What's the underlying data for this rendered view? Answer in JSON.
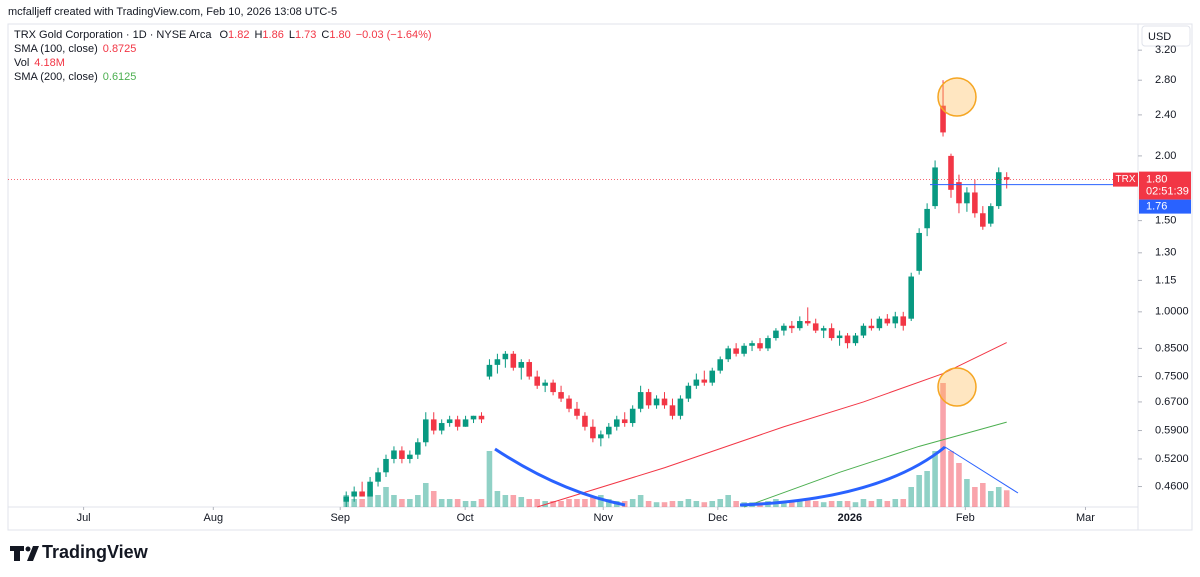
{
  "header": {
    "credit": "mcfalljeff created with TradingView.com, Feb 10, 2026 13:08 UTC-5",
    "currency": "USD",
    "brand": "TradingView"
  },
  "chart_data": {
    "type": "candlestick",
    "symbol_line": "TRX Gold Corporation · 1D · NYSE Arca",
    "ohlc_legend": [
      {
        "key": "O",
        "value": "1.82"
      },
      {
        "key": "H",
        "value": "1.86"
      },
      {
        "key": "L",
        "value": "1.73"
      },
      {
        "key": "C",
        "value": "1.80"
      }
    ],
    "change": "−0.03 (−1.64%)",
    "volume_legend": {
      "name": "Vol",
      "value": "4.18M"
    },
    "log_scale": true,
    "grid": false,
    "up_color": "#089981",
    "down_color": "#f23645",
    "x": [
      0,
      1,
      2,
      3,
      4,
      5,
      6,
      7,
      8,
      9,
      10,
      11,
      12,
      13,
      14,
      15,
      16,
      17,
      18,
      19,
      20,
      21,
      22,
      23,
      24,
      25,
      26,
      27,
      28,
      29,
      30,
      31,
      32,
      33,
      34,
      35,
      36,
      37,
      38,
      39,
      40,
      41,
      42,
      43,
      44,
      45,
      46,
      47,
      48,
      49,
      50,
      51,
      52,
      53,
      54,
      55,
      56,
      57,
      58,
      59,
      60,
      61,
      62,
      63,
      64,
      65,
      66,
      67,
      68,
      69,
      70,
      71,
      72,
      73,
      74,
      75,
      76,
      77,
      78,
      79,
      80,
      81,
      82,
      83
    ],
    "open": [
      0.43,
      0.44,
      0.45,
      0.44,
      0.47,
      0.49,
      0.52,
      0.54,
      0.52,
      0.53,
      0.56,
      0.62,
      0.59,
      0.61,
      0.62,
      0.6,
      0.62,
      0.63,
      0.75,
      0.79,
      0.81,
      0.83,
      0.78,
      0.8,
      0.75,
      0.72,
      0.73,
      0.7,
      0.68,
      0.65,
      0.63,
      0.6,
      0.57,
      0.58,
      0.6,
      0.62,
      0.61,
      0.65,
      0.7,
      0.66,
      0.68,
      0.66,
      0.63,
      0.68,
      0.72,
      0.74,
      0.73,
      0.77,
      0.81,
      0.85,
      0.83,
      0.86,
      0.87,
      0.85,
      0.89,
      0.92,
      0.94,
      0.93,
      0.96,
      0.95,
      0.92,
      0.93,
      0.89,
      0.9,
      0.87,
      0.9,
      0.94,
      0.93,
      0.97,
      0.95,
      0.98,
      0.97,
      1.2,
      1.45,
      1.6,
      2.5,
      2.0,
      1.78,
      1.62,
      1.7,
      1.55,
      1.48,
      1.6,
      1.82
    ],
    "high": [
      0.45,
      0.46,
      0.47,
      0.48,
      0.5,
      0.53,
      0.55,
      0.55,
      0.54,
      0.57,
      0.64,
      0.64,
      0.62,
      0.63,
      0.63,
      0.63,
      0.63,
      0.64,
      0.81,
      0.83,
      0.84,
      0.84,
      0.81,
      0.81,
      0.77,
      0.74,
      0.74,
      0.72,
      0.69,
      0.67,
      0.64,
      0.62,
      0.59,
      0.61,
      0.63,
      0.64,
      0.66,
      0.72,
      0.71,
      0.69,
      0.7,
      0.68,
      0.69,
      0.73,
      0.76,
      0.77,
      0.78,
      0.82,
      0.86,
      0.87,
      0.87,
      0.88,
      0.89,
      0.9,
      0.93,
      0.95,
      0.96,
      0.98,
      1.02,
      0.97,
      0.94,
      0.95,
      0.92,
      0.91,
      0.91,
      0.95,
      0.97,
      0.98,
      0.99,
      1.0,
      1.0,
      1.19,
      1.45,
      1.62,
      1.96,
      2.8,
      2.02,
      1.84,
      1.74,
      1.8,
      1.6,
      1.62,
      1.9,
      1.86
    ],
    "low": [
      0.42,
      0.43,
      0.44,
      0.44,
      0.46,
      0.48,
      0.51,
      0.51,
      0.51,
      0.52,
      0.55,
      0.58,
      0.58,
      0.6,
      0.59,
      0.6,
      0.61,
      0.61,
      0.74,
      0.76,
      0.78,
      0.77,
      0.74,
      0.74,
      0.71,
      0.7,
      0.69,
      0.67,
      0.64,
      0.62,
      0.59,
      0.56,
      0.55,
      0.57,
      0.59,
      0.6,
      0.6,
      0.64,
      0.65,
      0.65,
      0.65,
      0.62,
      0.62,
      0.67,
      0.71,
      0.72,
      0.72,
      0.76,
      0.8,
      0.82,
      0.82,
      0.84,
      0.84,
      0.84,
      0.88,
      0.9,
      0.91,
      0.92,
      0.94,
      0.91,
      0.89,
      0.88,
      0.86,
      0.85,
      0.86,
      0.89,
      0.92,
      0.92,
      0.94,
      0.93,
      0.92,
      0.96,
      1.18,
      1.4,
      1.58,
      2.18,
      1.66,
      1.55,
      1.56,
      1.52,
      1.44,
      1.46,
      1.58,
      1.73
    ],
    "close": [
      0.44,
      0.45,
      0.44,
      0.47,
      0.49,
      0.52,
      0.54,
      0.52,
      0.53,
      0.56,
      0.62,
      0.59,
      0.61,
      0.62,
      0.6,
      0.62,
      0.63,
      0.62,
      0.79,
      0.81,
      0.83,
      0.78,
      0.8,
      0.75,
      0.72,
      0.73,
      0.7,
      0.68,
      0.65,
      0.63,
      0.6,
      0.57,
      0.58,
      0.6,
      0.62,
      0.61,
      0.65,
      0.7,
      0.66,
      0.68,
      0.66,
      0.63,
      0.68,
      0.72,
      0.74,
      0.73,
      0.77,
      0.81,
      0.85,
      0.83,
      0.86,
      0.87,
      0.85,
      0.89,
      0.92,
      0.94,
      0.93,
      0.96,
      0.95,
      0.92,
      0.93,
      0.89,
      0.9,
      0.87,
      0.9,
      0.94,
      0.93,
      0.97,
      0.95,
      0.98,
      0.94,
      1.17,
      1.42,
      1.58,
      1.9,
      2.22,
      1.72,
      1.62,
      1.7,
      1.55,
      1.46,
      1.6,
      1.86,
      1.8
    ],
    "volume": [
      3,
      2,
      2,
      4,
      3,
      5,
      3,
      2,
      2,
      3,
      6,
      4,
      2,
      2,
      2,
      1.5,
      1.5,
      2,
      14,
      4,
      3,
      3,
      2.5,
      2,
      2,
      1.5,
      1.5,
      1.5,
      2,
      2,
      2,
      2.5,
      3,
      2,
      1.5,
      1.5,
      2,
      3,
      1.5,
      1.2,
      1.2,
      1.5,
      1.5,
      2,
      1.5,
      1.2,
      1.5,
      2,
      3,
      1.5,
      1.2,
      1.2,
      1.2,
      1.5,
      2,
      1.5,
      1.2,
      1.5,
      2,
      1.5,
      1.2,
      1.5,
      1.5,
      1.5,
      1.2,
      2,
      1.5,
      2,
      1.5,
      2,
      2,
      5,
      8,
      9,
      14,
      31,
      14,
      11,
      7,
      5,
      6,
      4,
      5,
      4.18
    ],
    "volume_ylim": [
      0,
      40
    ],
    "series": [
      {
        "name": "SMA (100, close)",
        "color": "#f23645",
        "x": [
          24,
          40,
          55,
          65,
          75,
          83
        ],
        "values": [
          0.42,
          0.5,
          0.6,
          0.67,
          0.76,
          0.8725
        ]
      },
      {
        "name": "SMA (200, close)",
        "color": "#4caf50",
        "x": [
          50,
          62,
          72,
          83
        ],
        "values": [
          0.42,
          0.49,
          0.55,
          0.6125
        ]
      }
    ],
    "price_tag": {
      "symbol": "TRX",
      "price": {
        "value": 1.8,
        "label": "1.80"
      },
      "countdown": "02:51:39"
    },
    "horizontal_line": {
      "value": 1.76,
      "label": "1.76"
    },
    "xlim": [
      -42.5,
      99.5
    ],
    "xticks": [
      {
        "value": -33,
        "label": "Jul"
      },
      {
        "value": -16.7,
        "label": "Aug"
      },
      {
        "value": -0.75,
        "label": "Sep"
      },
      {
        "value": 14.95,
        "label": "Oct"
      },
      {
        "value": 32.3,
        "label": "Nov"
      },
      {
        "value": 46.7,
        "label": "Dec"
      },
      {
        "value": 63.3,
        "label": "2026"
      },
      {
        "value": 77.8,
        "label": "Feb"
      },
      {
        "value": 92.9,
        "label": "Mar"
      }
    ],
    "ylim": [
      0.42,
      3.5
    ],
    "yticks": [
      {
        "value": 0.46,
        "label": "0.4600"
      },
      {
        "value": 0.52,
        "label": "0.5200"
      },
      {
        "value": 0.59,
        "label": "0.5900"
      },
      {
        "value": 0.67,
        "label": "0.6700"
      },
      {
        "value": 0.75,
        "label": "0.7500"
      },
      {
        "value": 0.85,
        "label": "0.8500"
      },
      {
        "value": 1,
        "label": "1.0000"
      },
      1.15,
      {
        "value": 1.3,
        "label": "1.30"
      },
      {
        "value": 1.5,
        "label": "1.50"
      },
      {
        "value": 2,
        "label": "2.00"
      },
      {
        "value": 2.4,
        "label": "2.40"
      },
      {
        "value": 2.8,
        "label": "2.80"
      },
      {
        "value": 3.2,
        "label": "3.20"
      }
    ]
  }
}
